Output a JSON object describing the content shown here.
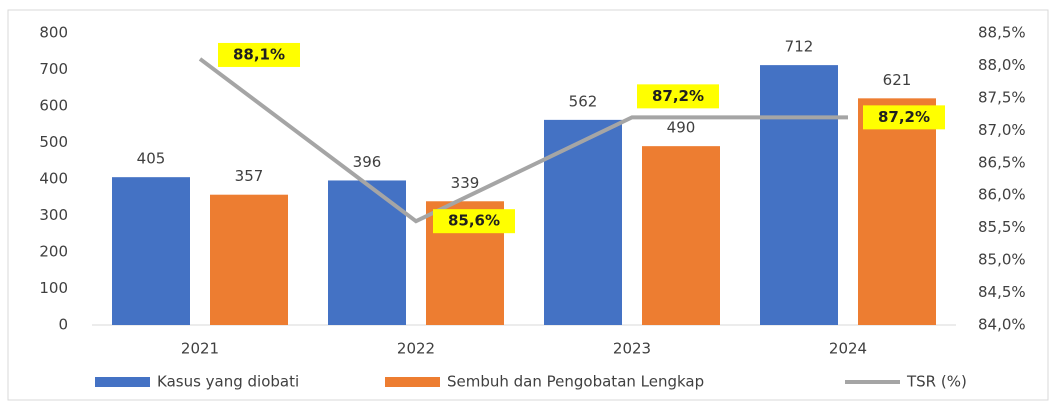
{
  "chart_data": {
    "type": "bar",
    "categories": [
      "2021",
      "2022",
      "2023",
      "2024"
    ],
    "series": [
      {
        "name": "Kasus yang diobati",
        "color": "#4472c4",
        "values": [
          405,
          396,
          562,
          712
        ]
      },
      {
        "name": "Sembuh dan Pengobatan Lengkap",
        "color": "#ed7d31",
        "values": [
          357,
          339,
          490,
          621
        ]
      },
      {
        "name": "TSR (%)",
        "color": "#a5a5a5",
        "type": "line",
        "axis": "y2",
        "values": [
          88.1,
          85.6,
          87.2,
          87.2
        ],
        "value_labels": [
          "88,1%",
          "85,6%",
          "87,2%",
          "87,2%"
        ]
      }
    ],
    "ylim": [
      0,
      800
    ],
    "yticks": [
      0,
      100,
      200,
      300,
      400,
      500,
      600,
      700,
      800
    ],
    "y2lim": [
      84.0,
      88.5
    ],
    "y2ticks": [
      {
        "value": 84.0,
        "label": "84,0%"
      },
      {
        "value": 84.5,
        "label": "84,5%"
      },
      {
        "value": 85.0,
        "label": "85,0%"
      },
      {
        "value": 85.5,
        "label": "85,5%"
      },
      {
        "value": 86.0,
        "label": "86,0%"
      },
      {
        "value": 86.5,
        "label": "86,5%"
      },
      {
        "value": 87.0,
        "label": "87,0%"
      },
      {
        "value": 87.5,
        "label": "87,5%"
      },
      {
        "value": 88.0,
        "label": "88,0%"
      },
      {
        "value": 88.5,
        "label": "88,5%"
      }
    ],
    "grid": false,
    "legend": "bottom"
  }
}
